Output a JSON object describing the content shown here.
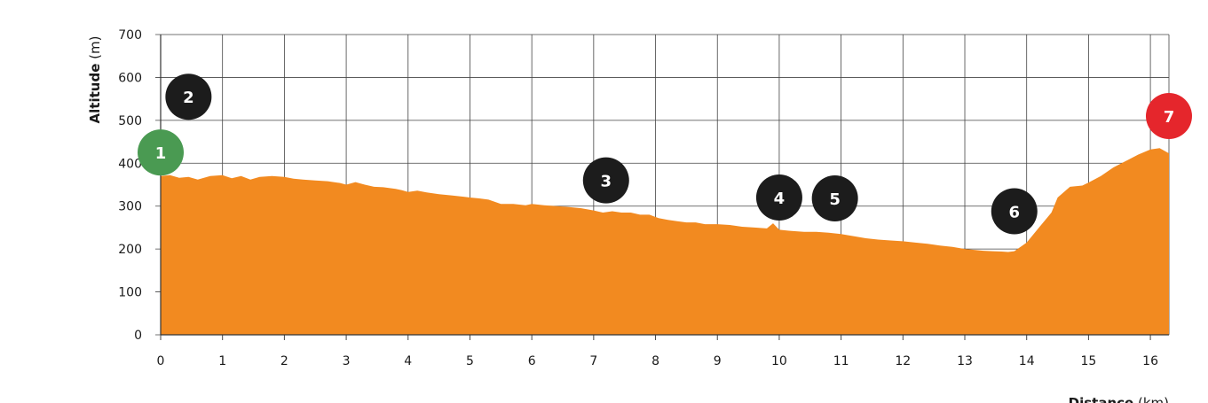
{
  "chart_data": {
    "type": "area",
    "xlabel": {
      "bold": "Distance",
      "unit": " (km)"
    },
    "ylabel": {
      "bold": "Altitude",
      "unit": " (m)"
    },
    "xlim": [
      0,
      16.3
    ],
    "ylim": [
      0,
      700
    ],
    "x_ticks": [
      0,
      1,
      2,
      3,
      4,
      5,
      6,
      7,
      8,
      9,
      10,
      11,
      12,
      13,
      14,
      15,
      16
    ],
    "y_ticks": [
      0,
      100,
      200,
      300,
      400,
      500,
      600,
      700
    ],
    "grid": true,
    "fill_color": "#f28a20",
    "profile": {
      "x": [
        0,
        0.15,
        0.3,
        0.45,
        0.6,
        0.8,
        1.0,
        1.15,
        1.3,
        1.45,
        1.6,
        1.8,
        2.0,
        2.15,
        2.3,
        2.5,
        2.7,
        2.9,
        3.0,
        3.15,
        3.3,
        3.45,
        3.6,
        3.8,
        3.9,
        4.0,
        4.15,
        4.3,
        4.5,
        4.7,
        4.9,
        5.0,
        5.15,
        5.3,
        5.5,
        5.7,
        5.9,
        6.0,
        6.2,
        6.4,
        6.6,
        6.8,
        7.0,
        7.15,
        7.3,
        7.45,
        7.6,
        7.75,
        7.9,
        8.05,
        8.2,
        8.35,
        8.5,
        8.65,
        8.8,
        9.0,
        9.2,
        9.4,
        9.6,
        9.8,
        9.9,
        10.0,
        10.2,
        10.4,
        10.6,
        10.8,
        11.0,
        11.2,
        11.4,
        11.6,
        11.8,
        12.0,
        12.2,
        12.4,
        12.6,
        12.8,
        13.0,
        13.15,
        13.3,
        13.45,
        13.6,
        13.7,
        13.8,
        14.0,
        14.2,
        14.4,
        14.5,
        14.7,
        14.9,
        15.0,
        15.2,
        15.4,
        15.6,
        15.8,
        16.0,
        16.15,
        16.3
      ],
      "y": [
        370,
        372,
        366,
        368,
        362,
        370,
        372,
        365,
        370,
        362,
        368,
        370,
        368,
        364,
        362,
        360,
        358,
        354,
        350,
        356,
        350,
        345,
        344,
        340,
        337,
        333,
        336,
        332,
        328,
        325,
        322,
        320,
        318,
        315,
        305,
        305,
        302,
        305,
        302,
        300,
        298,
        295,
        290,
        285,
        288,
        285,
        285,
        280,
        280,
        272,
        268,
        265,
        262,
        262,
        258,
        258,
        256,
        252,
        250,
        248,
        260,
        245,
        242,
        240,
        240,
        238,
        235,
        230,
        225,
        222,
        220,
        218,
        215,
        212,
        208,
        205,
        200,
        198,
        196,
        195,
        194,
        193,
        195,
        215,
        250,
        285,
        320,
        345,
        348,
        355,
        370,
        390,
        405,
        420,
        432,
        435,
        423
      ]
    },
    "markers": [
      {
        "label": "1",
        "x": 0.0,
        "y": 425,
        "color": "#4a9a52"
      },
      {
        "label": "2",
        "x": 0.45,
        "y": 555,
        "color": "#1c1c1c"
      },
      {
        "label": "3",
        "x": 7.2,
        "y": 360,
        "color": "#1c1c1c"
      },
      {
        "label": "4",
        "x": 10.0,
        "y": 320,
        "color": "#1c1c1c"
      },
      {
        "label": "5",
        "x": 10.9,
        "y": 318,
        "color": "#1c1c1c"
      },
      {
        "label": "6",
        "x": 13.8,
        "y": 288,
        "color": "#1c1c1c"
      },
      {
        "label": "7",
        "x": 16.3,
        "y": 510,
        "color": "#e5262c"
      }
    ]
  }
}
